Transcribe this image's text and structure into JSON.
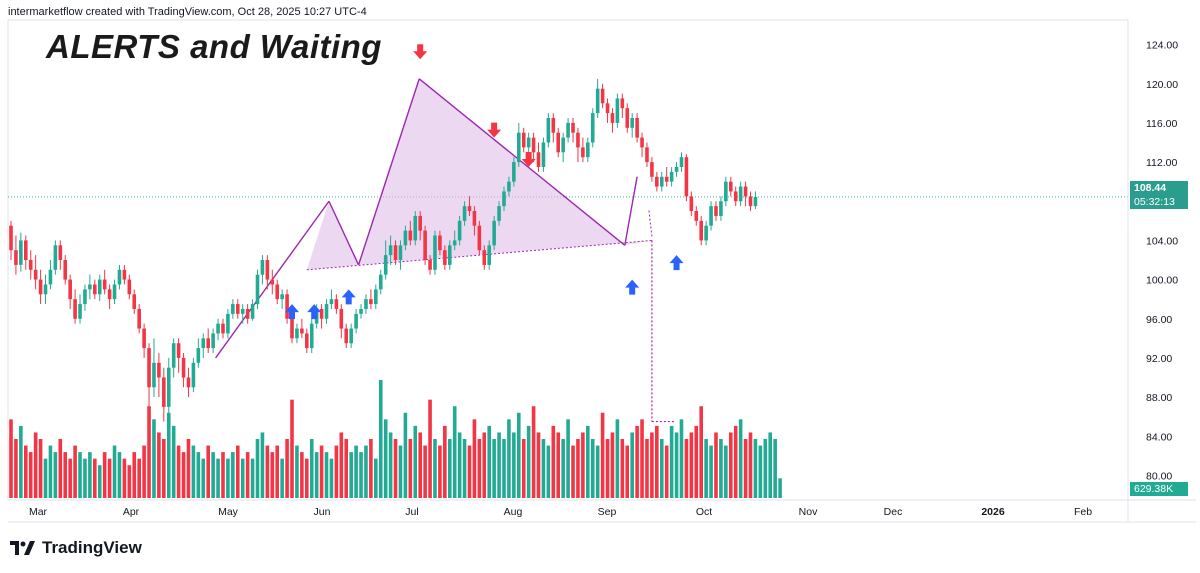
{
  "header": {
    "attribution": "intermarketflow created with TradingView.com, Oct 28, 2025 10:27 UTC-4"
  },
  "title": "ALERTS and Waiting",
  "footer": {
    "brand": "TradingView"
  },
  "badges": {
    "last_price": "108.44",
    "countdown": "05:32:13",
    "volume": "629.38K"
  },
  "colors": {
    "up": "#22ab94",
    "down": "#f23645",
    "pattern_line": "#9c27b0",
    "pattern_fill": "#e1bee7",
    "arrow_up": "#2962ff",
    "arrow_down": "#f23645",
    "price_line": "#26a69a"
  },
  "chart_data": {
    "type": "candlestick",
    "y_axis": {
      "ticks": [
        "124.00",
        "120.00",
        "116.00",
        "112.00",
        "108.00",
        "104.00",
        "100.00",
        "96.00",
        "92.00",
        "88.00",
        "84.00",
        "80.00"
      ],
      "range": [
        78,
        126
      ]
    },
    "x_axis": {
      "labels": [
        "Mar",
        "Apr",
        "May",
        "Jun",
        "Jul",
        "Aug",
        "Sep",
        "Oct",
        "Nov",
        "Dec",
        "2026",
        "Feb"
      ]
    },
    "last_price": 108.44,
    "candles": [
      [
        105.5,
        103.0,
        106.0,
        102.0
      ],
      [
        103.0,
        101.5,
        104.5,
        100.5
      ],
      [
        101.5,
        104.0,
        104.8,
        100.8
      ],
      [
        104.0,
        102.0,
        104.5,
        101.0
      ],
      [
        102.0,
        101.0,
        103.0,
        100.0
      ],
      [
        101.0,
        100.0,
        102.5,
        99.0
      ],
      [
        100.0,
        98.5,
        101.0,
        97.5
      ],
      [
        98.5,
        99.5,
        100.5,
        97.5
      ],
      [
        99.5,
        101.0,
        102.0,
        99.0
      ],
      [
        101.0,
        103.5,
        104.0,
        100.5
      ],
      [
        103.5,
        102.0,
        104.0,
        101.0
      ],
      [
        102.0,
        100.0,
        102.5,
        99.5
      ],
      [
        100.0,
        98.0,
        100.5,
        97.0
      ],
      [
        98.0,
        96.0,
        99.0,
        95.5
      ],
      [
        96.0,
        97.5,
        98.5,
        95.5
      ],
      [
        97.5,
        99.0,
        99.5,
        96.8
      ],
      [
        99.0,
        99.5,
        100.5,
        98.0
      ],
      [
        99.5,
        98.5,
        100.0,
        98.0
      ],
      [
        98.5,
        100.0,
        100.5,
        97.8
      ],
      [
        100.0,
        99.0,
        101.0,
        98.5
      ],
      [
        99.0,
        98.0,
        99.5,
        97.0
      ],
      [
        98.0,
        99.5,
        100.0,
        97.5
      ],
      [
        99.5,
        101.0,
        101.5,
        99.0
      ],
      [
        101.0,
        100.0,
        101.5,
        99.5
      ],
      [
        100.0,
        98.5,
        100.5,
        98.0
      ],
      [
        98.5,
        97.0,
        99.0,
        96.5
      ],
      [
        97.0,
        95.0,
        97.5,
        94.5
      ],
      [
        95.0,
        93.0,
        95.5,
        92.0
      ],
      [
        93.0,
        89.0,
        93.5,
        86.0
      ],
      [
        89.0,
        91.5,
        94.0,
        88.0
      ],
      [
        91.5,
        90.0,
        92.5,
        88.0
      ],
      [
        90.0,
        87.0,
        91.0,
        85.5
      ],
      [
        87.0,
        91.0,
        92.0,
        86.0
      ],
      [
        91.0,
        93.5,
        94.0,
        90.0
      ],
      [
        93.5,
        92.0,
        94.0,
        90.5
      ],
      [
        92.0,
        90.0,
        92.5,
        89.0
      ],
      [
        90.0,
        89.0,
        91.0,
        88.0
      ],
      [
        89.0,
        91.5,
        92.0,
        88.5
      ],
      [
        91.5,
        93.0,
        94.0,
        91.0
      ],
      [
        93.0,
        94.0,
        94.5,
        92.0
      ],
      [
        94.0,
        93.0,
        95.0,
        92.5
      ],
      [
        93.0,
        94.5,
        95.0,
        92.5
      ],
      [
        94.5,
        95.5,
        96.0,
        93.8
      ],
      [
        95.5,
        94.5,
        96.0,
        94.0
      ],
      [
        94.5,
        96.5,
        97.0,
        94.0
      ],
      [
        96.5,
        97.5,
        98.0,
        96.0
      ],
      [
        97.5,
        96.5,
        98.0,
        96.0
      ],
      [
        96.5,
        97.0,
        97.5,
        95.5
      ],
      [
        97.0,
        96.0,
        97.5,
        95.5
      ],
      [
        96.0,
        97.5,
        98.0,
        95.8
      ],
      [
        97.5,
        100.5,
        101.0,
        97.0
      ],
      [
        100.5,
        102.0,
        102.5,
        99.5
      ],
      [
        102.0,
        100.0,
        102.5,
        99.0
      ],
      [
        100.0,
        99.5,
        101.0,
        98.5
      ],
      [
        99.5,
        98.0,
        100.0,
        97.5
      ],
      [
        98.0,
        98.5,
        99.0,
        97.0
      ],
      [
        98.5,
        96.0,
        99.0,
        95.5
      ],
      [
        96.0,
        94.0,
        96.5,
        93.5
      ],
      [
        94.0,
        95.0,
        95.5,
        93.5
      ],
      [
        95.0,
        94.5,
        96.0,
        94.0
      ],
      [
        94.5,
        93.0,
        95.0,
        92.5
      ],
      [
        93.0,
        95.5,
        96.0,
        92.5
      ],
      [
        95.5,
        97.0,
        97.5,
        95.0
      ],
      [
        97.0,
        96.0,
        97.5,
        95.0
      ],
      [
        96.0,
        97.5,
        98.0,
        95.5
      ],
      [
        97.5,
        98.0,
        99.0,
        97.0
      ],
      [
        98.0,
        97.0,
        98.5,
        96.5
      ],
      [
        97.0,
        95.0,
        97.5,
        94.0
      ],
      [
        95.0,
        93.5,
        95.5,
        93.0
      ],
      [
        93.5,
        95.0,
        95.5,
        93.0
      ],
      [
        95.0,
        96.5,
        97.0,
        94.5
      ],
      [
        96.5,
        97.0,
        97.5,
        96.0
      ],
      [
        97.0,
        98.0,
        98.5,
        96.5
      ],
      [
        98.0,
        97.5,
        99.0,
        97.0
      ],
      [
        97.5,
        99.0,
        99.5,
        97.0
      ],
      [
        99.0,
        100.5,
        101.0,
        98.5
      ],
      [
        100.5,
        102.5,
        104.0,
        100.0
      ],
      [
        102.5,
        103.5,
        104.5,
        101.5
      ],
      [
        103.5,
        102.0,
        104.0,
        101.5
      ],
      [
        102.0,
        103.5,
        104.0,
        101.0
      ],
      [
        103.5,
        105.0,
        105.5,
        103.0
      ],
      [
        105.0,
        104.0,
        106.0,
        103.5
      ],
      [
        104.0,
        106.5,
        107.0,
        103.5
      ],
      [
        106.5,
        105.0,
        107.0,
        104.0
      ],
      [
        105.0,
        102.0,
        105.5,
        101.5
      ],
      [
        102.0,
        101.0,
        102.5,
        100.5
      ],
      [
        101.0,
        104.5,
        105.0,
        100.5
      ],
      [
        104.5,
        103.0,
        105.0,
        102.5
      ],
      [
        103.0,
        101.5,
        103.5,
        101.0
      ],
      [
        101.5,
        103.5,
        104.0,
        101.0
      ],
      [
        103.5,
        104.0,
        105.0,
        103.0
      ],
      [
        104.0,
        106.0,
        106.5,
        103.5
      ],
      [
        106.0,
        107.5,
        108.0,
        105.5
      ],
      [
        107.5,
        107.0,
        108.5,
        106.5
      ],
      [
        107.0,
        105.5,
        107.5,
        104.5
      ],
      [
        105.5,
        103.0,
        106.0,
        102.5
      ],
      [
        103.0,
        101.5,
        103.5,
        101.0
      ],
      [
        101.5,
        103.5,
        104.0,
        101.0
      ],
      [
        103.5,
        106.0,
        106.5,
        103.0
      ],
      [
        106.0,
        107.5,
        108.0,
        105.5
      ],
      [
        107.5,
        109.0,
        109.5,
        107.0
      ],
      [
        109.0,
        110.0,
        110.5,
        108.5
      ],
      [
        110.0,
        112.0,
        112.5,
        109.5
      ],
      [
        112.0,
        115.0,
        116.0,
        111.5
      ],
      [
        115.0,
        113.5,
        115.5,
        113.0
      ],
      [
        113.5,
        114.5,
        115.0,
        112.5
      ],
      [
        114.5,
        113.0,
        115.0,
        112.0
      ],
      [
        113.0,
        111.5,
        114.0,
        111.0
      ],
      [
        111.5,
        114.0,
        114.5,
        111.0
      ],
      [
        114.0,
        116.5,
        117.0,
        113.5
      ],
      [
        116.5,
        115.0,
        117.0,
        114.0
      ],
      [
        115.0,
        113.0,
        115.5,
        112.5
      ],
      [
        113.0,
        114.5,
        115.0,
        112.0
      ],
      [
        114.5,
        116.0,
        116.5,
        114.0
      ],
      [
        116.0,
        115.0,
        116.5,
        114.0
      ],
      [
        115.0,
        113.5,
        115.5,
        112.0
      ],
      [
        113.5,
        112.5,
        114.5,
        112.0
      ],
      [
        112.5,
        114.0,
        114.5,
        112.0
      ],
      [
        114.0,
        117.0,
        117.5,
        113.5
      ],
      [
        117.0,
        119.5,
        120.5,
        116.5
      ],
      [
        119.5,
        118.0,
        120.0,
        117.5
      ],
      [
        118.0,
        117.0,
        118.5,
        116.0
      ],
      [
        117.0,
        116.0,
        117.5,
        115.0
      ],
      [
        116.0,
        118.5,
        119.0,
        115.5
      ],
      [
        118.5,
        117.5,
        119.0,
        116.5
      ],
      [
        117.5,
        115.5,
        118.0,
        115.0
      ],
      [
        115.5,
        116.5,
        117.0,
        114.5
      ],
      [
        116.5,
        114.5,
        117.0,
        114.0
      ],
      [
        114.5,
        113.5,
        115.0,
        112.5
      ],
      [
        113.5,
        112.0,
        114.0,
        111.5
      ],
      [
        112.0,
        110.5,
        112.5,
        110.0
      ],
      [
        110.5,
        109.5,
        111.0,
        109.0
      ],
      [
        109.5,
        110.5,
        111.0,
        109.0
      ],
      [
        110.5,
        110.0,
        111.5,
        109.5
      ],
      [
        110.0,
        111.0,
        111.5,
        109.5
      ],
      [
        111.0,
        111.5,
        112.0,
        110.5
      ],
      [
        111.5,
        112.5,
        113.0,
        111.0
      ],
      [
        112.5,
        108.5,
        112.8,
        108.0
      ],
      [
        108.5,
        107.0,
        109.0,
        106.5
      ],
      [
        107.0,
        106.0,
        107.5,
        105.5
      ],
      [
        106.0,
        104.0,
        106.5,
        103.5
      ],
      [
        104.0,
        105.5,
        106.0,
        103.5
      ],
      [
        105.5,
        107.5,
        108.0,
        105.0
      ],
      [
        107.5,
        106.5,
        108.0,
        106.0
      ],
      [
        106.5,
        108.0,
        108.5,
        106.0
      ],
      [
        108.0,
        110.0,
        110.5,
        107.5
      ],
      [
        110.0,
        109.0,
        110.5,
        108.5
      ],
      [
        109.0,
        108.0,
        109.5,
        107.5
      ],
      [
        108.0,
        109.5,
        110.0,
        107.5
      ],
      [
        109.5,
        108.5,
        110.0,
        107.5
      ],
      [
        108.5,
        107.5,
        109.0,
        107.0
      ],
      [
        107.5,
        108.44,
        109.0,
        107.2
      ]
    ],
    "volume": [
      12,
      9,
      11,
      8,
      7,
      10,
      9,
      6,
      8,
      7,
      9,
      7,
      6,
      8,
      7,
      6,
      7,
      6,
      5,
      7,
      6,
      8,
      7,
      6,
      5,
      7,
      6,
      8,
      14,
      12,
      10,
      9,
      13,
      11,
      8,
      7,
      9,
      8,
      7,
      6,
      8,
      7,
      6,
      7,
      6,
      7,
      8,
      6,
      7,
      6,
      9,
      10,
      8,
      7,
      8,
      6,
      9,
      15,
      8,
      7,
      6,
      9,
      7,
      8,
      7,
      6,
      8,
      10,
      9,
      7,
      8,
      7,
      8,
      9,
      6,
      18,
      12,
      10,
      9,
      8,
      13,
      9,
      11,
      10,
      8,
      15,
      9,
      8,
      11,
      9,
      14,
      10,
      9,
      8,
      12,
      9,
      10,
      11,
      9,
      10,
      9,
      12,
      10,
      13,
      9,
      11,
      14,
      10,
      9,
      8,
      11,
      10,
      9,
      12,
      8,
      9,
      10,
      11,
      9,
      8,
      13,
      9,
      10,
      12,
      9,
      8,
      10,
      11,
      12,
      9,
      10,
      11,
      9,
      8,
      11,
      10,
      12,
      9,
      10,
      11,
      14,
      9,
      8,
      10,
      9,
      8,
      10,
      11,
      12,
      9,
      10,
      9,
      8,
      9,
      10,
      9,
      3
    ],
    "pattern_lines": [
      {
        "name": "leg1",
        "points": [
          [
            41.5,
            92.0
          ],
          [
            64.5,
            108.0
          ]
        ]
      },
      {
        "name": "leg2",
        "points": [
          [
            64.5,
            108.0
          ],
          [
            70.5,
            101.5
          ]
        ]
      },
      {
        "name": "leg3",
        "points": [
          [
            70.5,
            101.5
          ],
          [
            82.8,
            120.5
          ]
        ]
      },
      {
        "name": "leg4",
        "points": [
          [
            82.8,
            120.5
          ],
          [
            124.5,
            103.5
          ]
        ]
      },
      {
        "name": "leg5",
        "points": [
          [
            124.5,
            103.5
          ],
          [
            127.0,
            110.5
          ]
        ]
      },
      {
        "name": "neckline",
        "points": [
          [
            60.0,
            101.0
          ],
          [
            130.0,
            104.0
          ]
        ]
      }
    ],
    "projection_target": 85.5,
    "arrows_up_at": [
      [
        57.0,
        97.5
      ],
      [
        61.5,
        97.5
      ],
      [
        68.5,
        99.0
      ],
      [
        126.0,
        100.0
      ],
      [
        135.0,
        102.5
      ]
    ],
    "arrows_down_at": [
      [
        83.0,
        122.5
      ],
      [
        98.0,
        114.5
      ],
      [
        105.0,
        111.5
      ]
    ]
  }
}
